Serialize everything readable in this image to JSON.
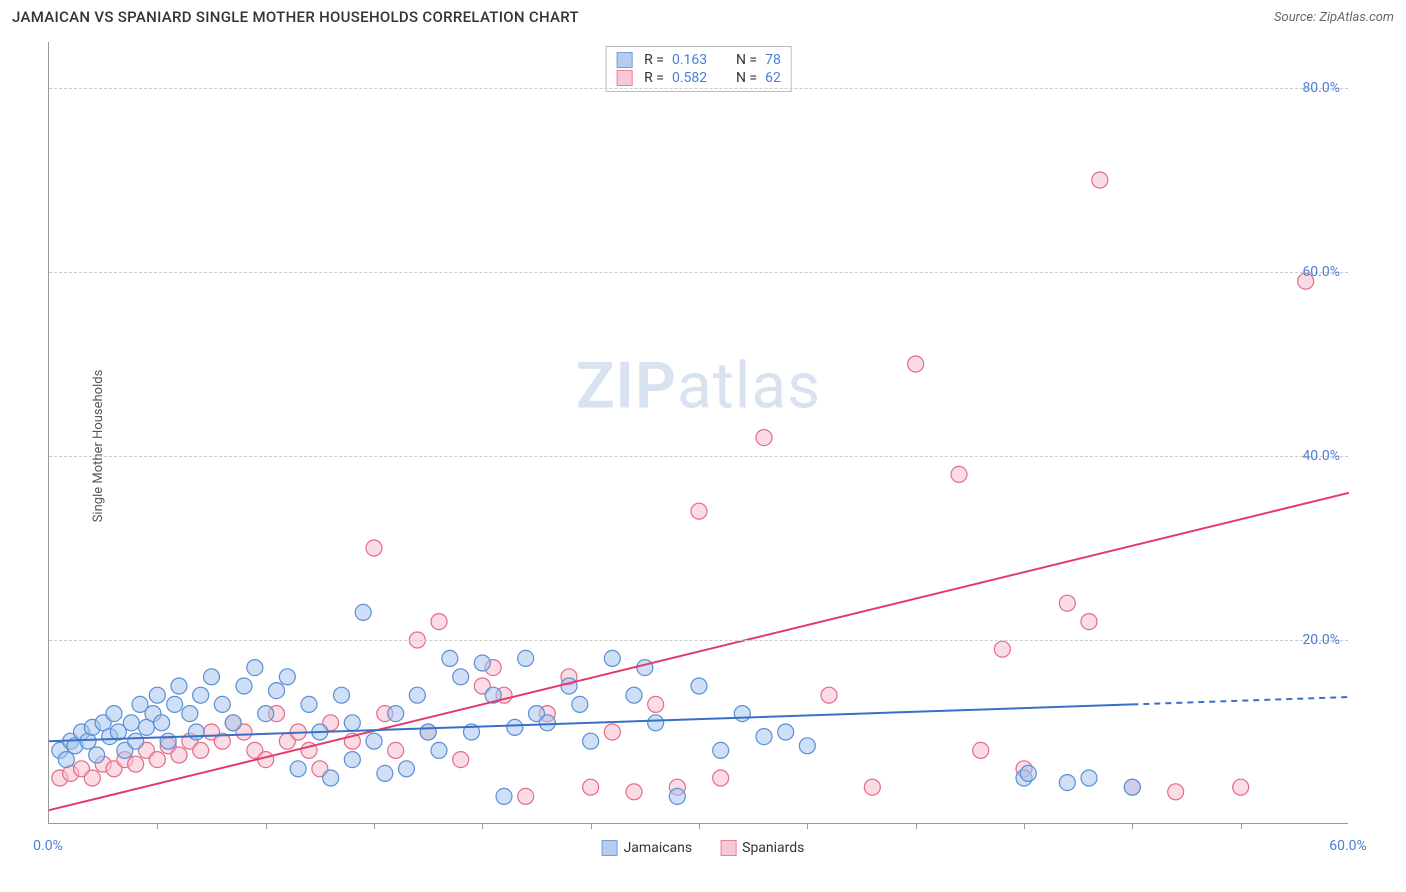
{
  "title": "JAMAICAN VS SPANIARD SINGLE MOTHER HOUSEHOLDS CORRELATION CHART",
  "source_label": "Source: ZipAtlas.com",
  "watermark": {
    "bold": "ZIP",
    "light": "atlas"
  },
  "y_axis_label": "Single Mother Households",
  "chart": {
    "type": "scatter",
    "xlim": [
      0,
      60
    ],
    "ylim": [
      0,
      85
    ],
    "x_ticks": [
      0,
      60
    ],
    "x_tick_labels": [
      "0.0%",
      "60.0%"
    ],
    "x_minor_ticks": [
      5,
      10,
      15,
      20,
      25,
      30,
      35,
      40,
      45,
      50,
      55
    ],
    "y_ticks": [
      20,
      40,
      60,
      80
    ],
    "y_tick_labels": [
      "20.0%",
      "40.0%",
      "60.0%",
      "80.0%"
    ],
    "grid_color": "#cccccc",
    "background_color": "#ffffff",
    "axis_color": "#999999",
    "marker_radius": 8,
    "marker_stroke_width": 1.2,
    "line_width": 2,
    "series": {
      "jamaicans": {
        "label": "Jamaicans",
        "fill": "#a7c5ec",
        "stroke": "#5a8fd6",
        "fill_opacity": 0.55,
        "r_value": "0.163",
        "n_value": "78",
        "regression": {
          "x1": 0,
          "y1": 9,
          "x2": 50,
          "y2": 13,
          "dash_x1": 50,
          "dash_x2": 60,
          "dash_y1": 13,
          "dash_y2": 13.8,
          "color": "#3a6fc8"
        },
        "points": [
          [
            0.5,
            8
          ],
          [
            0.8,
            7
          ],
          [
            1,
            9
          ],
          [
            1.2,
            8.5
          ],
          [
            1.5,
            10
          ],
          [
            1.8,
            9
          ],
          [
            2,
            10.5
          ],
          [
            2.2,
            7.5
          ],
          [
            2.5,
            11
          ],
          [
            2.8,
            9.5
          ],
          [
            3,
            12
          ],
          [
            3.2,
            10
          ],
          [
            3.5,
            8
          ],
          [
            3.8,
            11
          ],
          [
            4,
            9
          ],
          [
            4.2,
            13
          ],
          [
            4.5,
            10.5
          ],
          [
            4.8,
            12
          ],
          [
            5,
            14
          ],
          [
            5.2,
            11
          ],
          [
            5.5,
            9
          ],
          [
            5.8,
            13
          ],
          [
            6,
            15
          ],
          [
            6.5,
            12
          ],
          [
            6.8,
            10
          ],
          [
            7,
            14
          ],
          [
            7.5,
            16
          ],
          [
            8,
            13
          ],
          [
            8.5,
            11
          ],
          [
            9,
            15
          ],
          [
            9.5,
            17
          ],
          [
            10,
            12
          ],
          [
            10.5,
            14.5
          ],
          [
            11,
            16
          ],
          [
            11.5,
            6
          ],
          [
            12,
            13
          ],
          [
            12.5,
            10
          ],
          [
            13,
            5
          ],
          [
            13.5,
            14
          ],
          [
            14,
            7
          ],
          [
            14,
            11
          ],
          [
            14.5,
            23
          ],
          [
            15,
            9
          ],
          [
            15.5,
            5.5
          ],
          [
            16,
            12
          ],
          [
            16.5,
            6
          ],
          [
            17,
            14
          ],
          [
            17.5,
            10
          ],
          [
            18,
            8
          ],
          [
            18.5,
            18
          ],
          [
            19,
            16
          ],
          [
            19.5,
            10
          ],
          [
            20,
            17.5
          ],
          [
            20.5,
            14
          ],
          [
            21,
            3
          ],
          [
            21.5,
            10.5
          ],
          [
            22,
            18
          ],
          [
            22.5,
            12
          ],
          [
            23,
            11
          ],
          [
            24,
            15
          ],
          [
            24.5,
            13
          ],
          [
            25,
            9
          ],
          [
            26,
            18
          ],
          [
            27,
            14
          ],
          [
            27.5,
            17
          ],
          [
            28,
            11
          ],
          [
            29,
            3
          ],
          [
            30,
            15
          ],
          [
            31,
            8
          ],
          [
            32,
            12
          ],
          [
            33,
            9.5
          ],
          [
            34,
            10
          ],
          [
            35,
            8.5
          ],
          [
            45,
            5
          ],
          [
            45.2,
            5.5
          ],
          [
            47,
            4.5
          ],
          [
            48,
            5
          ],
          [
            50,
            4
          ]
        ]
      },
      "spaniards": {
        "label": "Spaniards",
        "fill": "#f5c0cd",
        "stroke": "#e66a8a",
        "fill_opacity": 0.55,
        "r_value": "0.582",
        "n_value": "62",
        "regression": {
          "x1": 0,
          "y1": 1.5,
          "x2": 60,
          "y2": 36,
          "color": "#e23a6a"
        },
        "points": [
          [
            0.5,
            5
          ],
          [
            1,
            5.5
          ],
          [
            1.5,
            6
          ],
          [
            2,
            5
          ],
          [
            2.5,
            6.5
          ],
          [
            3,
            6
          ],
          [
            3.5,
            7
          ],
          [
            4,
            6.5
          ],
          [
            4.5,
            8
          ],
          [
            5,
            7
          ],
          [
            5.5,
            8.5
          ],
          [
            6,
            7.5
          ],
          [
            6.5,
            9
          ],
          [
            7,
            8
          ],
          [
            7.5,
            10
          ],
          [
            8,
            9
          ],
          [
            8.5,
            11
          ],
          [
            9,
            10
          ],
          [
            9.5,
            8
          ],
          [
            10,
            7
          ],
          [
            10.5,
            12
          ],
          [
            11,
            9
          ],
          [
            11.5,
            10
          ],
          [
            12,
            8
          ],
          [
            12.5,
            6
          ],
          [
            13,
            11
          ],
          [
            14,
            9
          ],
          [
            15,
            30
          ],
          [
            15.5,
            12
          ],
          [
            16,
            8
          ],
          [
            17,
            20
          ],
          [
            17.5,
            10
          ],
          [
            18,
            22
          ],
          [
            19,
            7
          ],
          [
            20,
            15
          ],
          [
            20.5,
            17
          ],
          [
            21,
            14
          ],
          [
            22,
            3
          ],
          [
            23,
            12
          ],
          [
            24,
            16
          ],
          [
            25,
            4
          ],
          [
            26,
            10
          ],
          [
            27,
            3.5
          ],
          [
            28,
            13
          ],
          [
            29,
            4
          ],
          [
            30,
            34
          ],
          [
            31,
            5
          ],
          [
            33,
            42
          ],
          [
            36,
            14
          ],
          [
            38,
            4
          ],
          [
            40,
            50
          ],
          [
            42,
            38
          ],
          [
            43,
            8
          ],
          [
            44,
            19
          ],
          [
            45,
            6
          ],
          [
            47,
            24
          ],
          [
            48,
            22
          ],
          [
            48.5,
            70
          ],
          [
            50,
            4
          ],
          [
            52,
            3.5
          ],
          [
            55,
            4
          ],
          [
            58,
            59
          ]
        ]
      }
    }
  },
  "legend_top": {
    "r_label": "R =",
    "n_label": "N ="
  },
  "legend_bottom": [
    {
      "key": "jamaicans"
    },
    {
      "key": "spaniards"
    }
  ]
}
